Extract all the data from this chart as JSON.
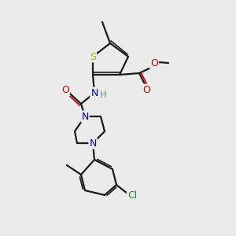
{
  "background_color": "#ebebeb",
  "bond_color": "#1a1a1a",
  "atoms": {
    "S": {
      "color": "#b8b800"
    },
    "O": {
      "color": "#cc0000"
    },
    "N": {
      "color": "#0000cc"
    },
    "Cl": {
      "color": "#228b22"
    },
    "H": {
      "color": "#6a8a8a"
    }
  },
  "figsize": [
    3.0,
    3.0
  ],
  "dpi": 100
}
